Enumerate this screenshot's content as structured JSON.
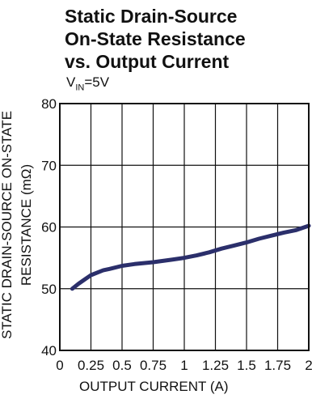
{
  "chart_data": {
    "type": "line",
    "title_lines": [
      "Static Drain-Source",
      "On-State Resistance",
      "vs. Output Current"
    ],
    "condition": {
      "main": "V",
      "sub": "IN",
      "rest": "=5V"
    },
    "ylabel_lines": [
      "STATIC DRAIN-SOURCE ON-STATE",
      "RESISTANCE (mΩ)"
    ],
    "xlabel": "OUTPUT CURRENT (A)",
    "xlim": [
      0,
      2
    ],
    "ylim": [
      40,
      80
    ],
    "x_ticks": [
      "0",
      "0.25",
      "0.5",
      "0.75",
      "1",
      "1.25",
      "1.5",
      "1.75",
      "2"
    ],
    "x_tick_values": [
      0,
      0.25,
      0.5,
      0.75,
      1,
      1.25,
      1.5,
      1.75,
      2
    ],
    "y_ticks": [
      "40",
      "50",
      "60",
      "70",
      "80"
    ],
    "y_tick_values": [
      40,
      50,
      60,
      70,
      80
    ],
    "grid": true,
    "series": [
      {
        "color": "#2b2f6b",
        "x": [
          0.1,
          0.15,
          0.2,
          0.25,
          0.3,
          0.35,
          0.4,
          0.5,
          0.6,
          0.75,
          0.9,
          1.0,
          1.1,
          1.2,
          1.3,
          1.4,
          1.5,
          1.6,
          1.7,
          1.8,
          1.9,
          2.0
        ],
        "y": [
          50.0,
          50.8,
          51.5,
          52.2,
          52.6,
          53.0,
          53.2,
          53.7,
          54.0,
          54.3,
          54.7,
          55.0,
          55.4,
          55.9,
          56.5,
          57.0,
          57.5,
          58.1,
          58.6,
          59.1,
          59.5,
          60.2
        ]
      }
    ]
  }
}
